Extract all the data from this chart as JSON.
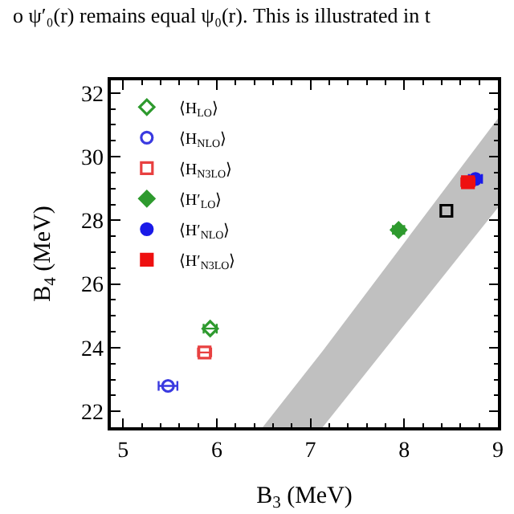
{
  "chart_data": {
    "type": "scatter",
    "xlabel": "B$_{3}$ (MeV)",
    "ylabel": "B$_{4}$ (MeV)",
    "annotations": [
      "o ψ′₀(r) remains equal ψ₀(r). This is illustrated in t"
    ],
    "xlim": [
      4.87,
      9.0
    ],
    "xticks": [
      5,
      6,
      7,
      8,
      9
    ],
    "ylim": [
      21.5,
      32.4
    ],
    "yticks": [
      22,
      24,
      26,
      28,
      30,
      32
    ],
    "legend": "top left",
    "series": [
      {
        "type": "area",
        "color": "#c0c0c0",
        "x": [
          6.49,
          7.13,
          9.0
        ],
        "values": [
          null,
          null,
          null
        ],
        "lower": [
          21.5,
          21.5,
          28.4
        ],
        "upper": [
          21.5,
          23.9,
          31.2
        ]
      },
      {
        "name": "⟨H$_{LO}$⟩",
        "color": "#2e9a2e",
        "marker": "diamond-open",
        "x": [
          5.93
        ],
        "values": [
          24.6
        ],
        "xerrors": [
          0.07
        ]
      },
      {
        "name": "⟨H$_{NLO}$⟩",
        "color": "#3a3ae0",
        "marker": "circle-open",
        "x": [
          5.48
        ],
        "values": [
          22.8
        ],
        "xerrors": [
          0.1
        ]
      },
      {
        "name": "⟨H$_{N3LO}$⟩",
        "color": "#e84040",
        "marker": "square-open",
        "x": [
          5.87
        ],
        "values": [
          23.85
        ],
        "xerrors": [
          0.07
        ]
      },
      {
        "name": "⟨H′$_{LO}$⟩",
        "color": "#2e9a2e",
        "marker": "diamond",
        "x": [
          7.94
        ],
        "values": [
          27.7
        ],
        "xerrors": [
          0.06
        ]
      },
      {
        "name": "⟨H′$_{NLO}$⟩",
        "color": "#1a1ae8",
        "marker": "circle",
        "x": [
          8.76
        ],
        "values": [
          29.3
        ],
        "xerrors": [
          0.07
        ]
      },
      {
        "name": "⟨H′$_{N3LO}$⟩",
        "color": "#ee1010",
        "marker": "square",
        "x": [
          8.68
        ],
        "values": [
          29.2
        ],
        "xerrors": [
          0.07
        ]
      },
      {
        "color": "#000000",
        "marker": "square-open",
        "x": [
          8.45
        ],
        "values": [
          28.3
        ]
      }
    ]
  }
}
